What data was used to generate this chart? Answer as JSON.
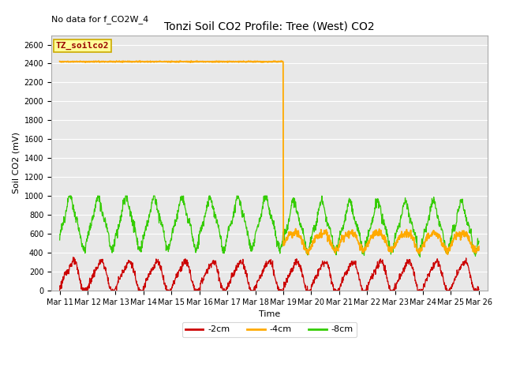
{
  "title": "Tonzi Soil CO2 Profile: Tree (West) CO2",
  "no_data_text": "No data for f_CO2W_4",
  "legend_box_label": "TZ_soilco2",
  "xlabel": "Time",
  "ylabel": "Soil CO2 (mV)",
  "ylim": [
    0,
    2700
  ],
  "yticks": [
    0,
    200,
    400,
    600,
    800,
    1000,
    1200,
    1400,
    1600,
    1800,
    2000,
    2200,
    2400,
    2600
  ],
  "xlim": [
    -0.3,
    15.3
  ],
  "xtick_labels": [
    "Mar 11",
    "Mar 12",
    "Mar 13",
    "Mar 14",
    "Mar 15",
    "Mar 16",
    "Mar 17",
    "Mar 18",
    "Mar 19",
    "Mar 20",
    "Mar 21",
    "Mar 22",
    "Mar 23",
    "Mar 24",
    "Mar 25",
    "Mar 26"
  ],
  "bg_color": "#e8e8e8",
  "line_red": "#cc0000",
  "line_orange": "#ffaa00",
  "line_green": "#33cc00",
  "legend_entries": [
    "-2cm",
    "-4cm",
    "-8cm"
  ],
  "orange_flat_value": 2420,
  "orange_drop_day": 8,
  "title_fontsize": 10,
  "axis_fontsize": 8,
  "tick_fontsize": 7,
  "legend_fontsize": 8
}
